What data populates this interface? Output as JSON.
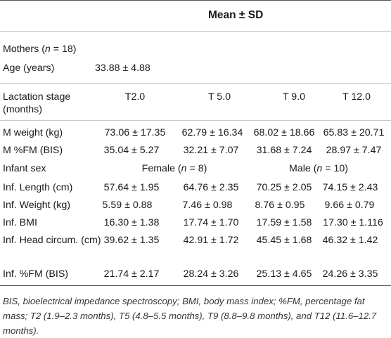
{
  "header": {
    "title": "Mean ± SD"
  },
  "mothers": {
    "group_label": "Mothers (",
    "group_n": "n",
    "group_suffix": " = 18)",
    "age_label": "Age (years)",
    "age_value": "33.88 ± 4.88"
  },
  "lactation": {
    "label": "Lactation stage (months)",
    "stages": [
      "T2.0",
      "T 5.0",
      "T 9.0",
      "T 12.0"
    ]
  },
  "rows_mother": [
    {
      "label": "M weight (kg)",
      "values": [
        "73.06 ± 17.35",
        "62.79 ± 16.34",
        "68.02 ± 18.66",
        "65.83 ± 20.71"
      ]
    },
    {
      "label": "M %FM (BIS)",
      "values": [
        "35.04 ± 5.27",
        "32.21 ± 7.07",
        "31.68 ± 7.24",
        "28.97 ± 7.47"
      ]
    }
  ],
  "infant_sex": {
    "label": "Infant sex",
    "female_prefix": "Female (",
    "female_n": "n",
    "female_suffix": " = 8)",
    "male_prefix": "Male (",
    "male_n": "n",
    "male_suffix": " = 10)"
  },
  "rows_infant": [
    {
      "label": "Inf. Length (cm)",
      "values": [
        "57.64 ± 1.95",
        "64.76 ± 2.35",
        "70.25 ± 2.05",
        "74.15 ± 2.43"
      ]
    },
    {
      "label": "Inf. Weight (kg)",
      "values": [
        "5.59 ± 0.88",
        "7.46 ± 0.98",
        "8.76 ± 0.95",
        "9.66 ± 0.79"
      ]
    },
    {
      "label": "Inf. BMI",
      "values": [
        "16.30 ± 1.38",
        "17.74 ± 1.70",
        "17.59 ± 1.58",
        "17.30 ± 1.116"
      ]
    },
    {
      "label": "Inf. Head circum. (cm)",
      "values": [
        "39.62 ± 1.35",
        "42.91 ± 1.72",
        "45.45 ± 1.68",
        "46.32 ± 1.42"
      ]
    },
    {
      "label": "Inf. %FM (BIS)",
      "values": [
        "21.74 ± 2.17",
        "28.24 ± 3.26",
        "25.13 ± 4.65",
        "24.26 ± 3.35"
      ]
    }
  ],
  "footnote": "BIS, bioelectrical impedance spectroscopy; BMI, body mass index; %FM, percentage fat mass; T2 (1.9–2.3 months), T5 (4.8–5.5 months), T9 (8.8–9.8 months), and T12 (11.6–12.7 months)."
}
